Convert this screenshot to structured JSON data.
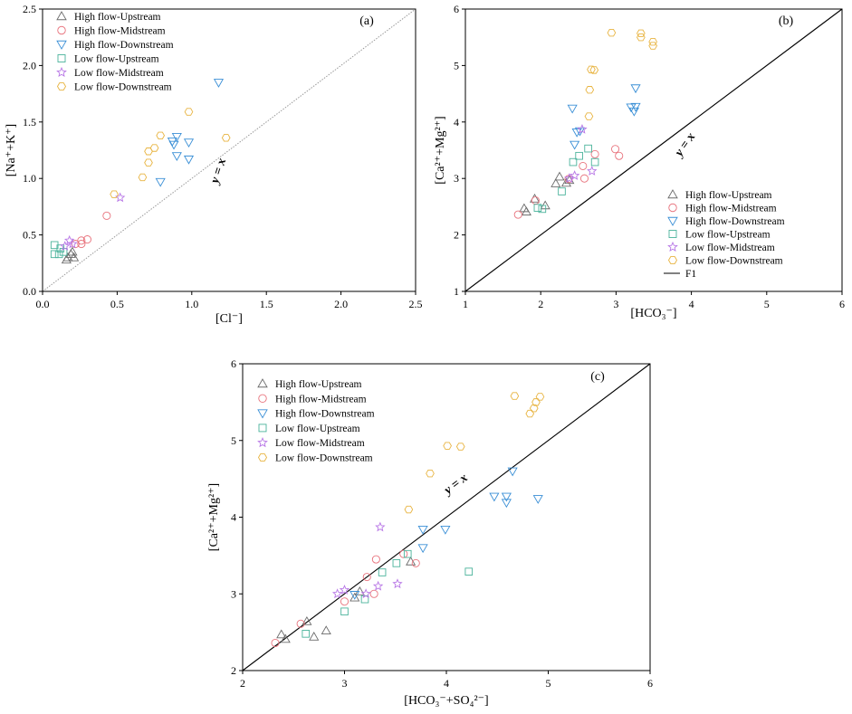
{
  "chart_data": [
    {
      "type": "scatter",
      "panel_label": "(a)",
      "xlabel": "[Cl⁻]",
      "ylabel": "[Na⁺+K⁺]",
      "xlim": [
        0.0,
        2.5
      ],
      "ylim": [
        0.0,
        2.5
      ],
      "xticks": [
        "0.0",
        "0.5",
        "1.0",
        "1.5",
        "2.0",
        "2.5"
      ],
      "yticks": [
        "0.0",
        "0.5",
        "1.0",
        "1.5",
        "2.0",
        "2.5"
      ],
      "reference_line": {
        "label": "y = x",
        "style": "dotted-gray"
      },
      "legend_position": "top-left",
      "series": [
        {
          "name": "High flow-Upstream",
          "points": [
            [
              0.17,
              0.3
            ],
            [
              0.19,
              0.33
            ],
            [
              0.21,
              0.3
            ],
            [
              0.16,
              0.28
            ],
            [
              0.2,
              0.35
            ]
          ]
        },
        {
          "name": "High flow-Midstream",
          "points": [
            [
              0.22,
              0.42
            ],
            [
              0.26,
              0.45
            ],
            [
              0.3,
              0.46
            ],
            [
              0.26,
              0.42
            ],
            [
              0.43,
              0.67
            ]
          ]
        },
        {
          "name": "High flow-Downstream",
          "points": [
            [
              0.79,
              0.97
            ],
            [
              0.87,
              1.33
            ],
            [
              0.88,
              1.3
            ],
            [
              0.9,
              1.37
            ],
            [
              0.9,
              1.2
            ],
            [
              0.98,
              1.32
            ],
            [
              0.98,
              1.17
            ],
            [
              1.18,
              1.85
            ]
          ]
        },
        {
          "name": "Low flow-Upstream",
          "points": [
            [
              0.08,
              0.41
            ],
            [
              0.08,
              0.33
            ],
            [
              0.11,
              0.33
            ],
            [
              0.12,
              0.38
            ],
            [
              0.14,
              0.35
            ]
          ]
        },
        {
          "name": "Low flow-Midstream",
          "points": [
            [
              0.15,
              0.4
            ],
            [
              0.18,
              0.45
            ],
            [
              0.2,
              0.42
            ],
            [
              0.52,
              0.83
            ]
          ]
        },
        {
          "name": "Low flow-Downstream",
          "points": [
            [
              0.48,
              0.86
            ],
            [
              0.67,
              1.01
            ],
            [
              0.71,
              1.14
            ],
            [
              0.71,
              1.24
            ],
            [
              0.75,
              1.27
            ],
            [
              0.79,
              1.38
            ],
            [
              0.98,
              1.59
            ],
            [
              1.23,
              1.36
            ]
          ]
        }
      ]
    },
    {
      "type": "scatter",
      "panel_label": "(b)",
      "xlabel": "[HCO₃⁻]",
      "ylabel": "[Ca²⁺+Mg²⁺]",
      "xlim": [
        1,
        6
      ],
      "ylim": [
        1,
        6
      ],
      "xticks": [
        "1",
        "2",
        "3",
        "4",
        "5",
        "6"
      ],
      "yticks": [
        "1",
        "2",
        "3",
        "4",
        "5",
        "6"
      ],
      "reference_line": {
        "label": "y = x",
        "legend_label": "F1",
        "style": "solid-black"
      },
      "legend_position": "bottom-right",
      "series": [
        {
          "name": "High flow-Upstream",
          "points": [
            [
              1.78,
              2.47
            ],
            [
              1.81,
              2.41
            ],
            [
              1.92,
              2.64
            ],
            [
              2.06,
              2.52
            ],
            [
              2.2,
              2.91
            ],
            [
              2.25,
              3.03
            ],
            [
              2.34,
              2.92
            ],
            [
              2.38,
              2.97
            ]
          ]
        },
        {
          "name": "High flow-Midstream",
          "points": [
            [
              1.7,
              2.36
            ],
            [
              1.93,
              2.61
            ],
            [
              2.37,
              2.99
            ],
            [
              2.58,
              3.0
            ],
            [
              2.72,
              3.43
            ],
            [
              2.99,
              3.52
            ],
            [
              3.04,
              3.4
            ],
            [
              2.56,
              3.22
            ]
          ]
        },
        {
          "name": "High flow-Downstream",
          "points": [
            [
              2.42,
              4.24
            ],
            [
              2.48,
              3.82
            ],
            [
              2.52,
              3.84
            ],
            [
              2.45,
              3.6
            ],
            [
              3.2,
              4.26
            ],
            [
              3.24,
              4.19
            ],
            [
              3.26,
              4.27
            ],
            [
              3.26,
              4.6
            ]
          ]
        },
        {
          "name": "Low flow-Upstream",
          "points": [
            [
              1.96,
              2.48
            ],
            [
              2.02,
              2.46
            ],
            [
              2.28,
              2.77
            ],
            [
              2.43,
              3.29
            ],
            [
              2.51,
              3.4
            ],
            [
              2.63,
              3.53
            ],
            [
              2.72,
              3.29
            ]
          ]
        },
        {
          "name": "Low flow-Midstream",
          "points": [
            [
              2.38,
              3.0
            ],
            [
              2.45,
              3.05
            ],
            [
              2.55,
              3.87
            ],
            [
              2.68,
              3.13
            ]
          ]
        },
        {
          "name": "Low flow-Downstream",
          "points": [
            [
              2.64,
              4.1
            ],
            [
              2.65,
              4.57
            ],
            [
              2.67,
              4.93
            ],
            [
              2.71,
              4.92
            ],
            [
              2.94,
              5.58
            ],
            [
              3.33,
              5.5
            ],
            [
              3.33,
              5.57
            ],
            [
              3.49,
              5.35
            ],
            [
              3.49,
              5.42
            ]
          ]
        }
      ]
    },
    {
      "type": "scatter",
      "panel_label": "(c)",
      "xlabel": "[HCO₃⁻+SO₄²⁻]",
      "ylabel": "[Ca²⁺+Mg²⁺]",
      "xlim": [
        2,
        6
      ],
      "ylim": [
        2,
        6
      ],
      "xticks": [
        "2",
        "3",
        "4",
        "5",
        "6"
      ],
      "yticks": [
        "2",
        "3",
        "4",
        "5",
        "6"
      ],
      "reference_line": {
        "label": "y = x",
        "style": "solid-black"
      },
      "legend_position": "top-left",
      "series": [
        {
          "name": "High flow-Upstream",
          "points": [
            [
              2.38,
              2.47
            ],
            [
              2.42,
              2.41
            ],
            [
              2.63,
              2.64
            ],
            [
              2.7,
              2.44
            ],
            [
              2.82,
              2.52
            ],
            [
              3.1,
              2.95
            ],
            [
              3.15,
              3.03
            ],
            [
              3.65,
              3.42
            ]
          ]
        },
        {
          "name": "High flow-Midstream",
          "points": [
            [
              2.32,
              2.36
            ],
            [
              2.57,
              2.61
            ],
            [
              3.0,
              2.9
            ],
            [
              3.22,
              3.22
            ],
            [
              3.29,
              3.0
            ],
            [
              3.31,
              3.45
            ],
            [
              3.58,
              3.52
            ],
            [
              3.7,
              3.4
            ]
          ]
        },
        {
          "name": "High flow-Downstream",
          "points": [
            [
              3.1,
              2.99
            ],
            [
              3.77,
              3.84
            ],
            [
              3.99,
              3.84
            ],
            [
              4.47,
              4.27
            ],
            [
              4.59,
              4.19
            ],
            [
              4.59,
              4.27
            ],
            [
              4.65,
              4.6
            ],
            [
              4.9,
              4.24
            ],
            [
              3.77,
              3.6
            ]
          ]
        },
        {
          "name": "Low flow-Upstream",
          "points": [
            [
              2.62,
              2.48
            ],
            [
              3.0,
              2.77
            ],
            [
              3.2,
              2.93
            ],
            [
              3.37,
              3.28
            ],
            [
              3.51,
              3.4
            ],
            [
              3.62,
              3.52
            ],
            [
              4.22,
              3.29
            ]
          ]
        },
        {
          "name": "Low flow-Midstream",
          "points": [
            [
              2.93,
              3.0
            ],
            [
              3.0,
              3.05
            ],
            [
              3.35,
              3.87
            ],
            [
              3.52,
              3.13
            ],
            [
              3.21,
              3.0
            ],
            [
              3.33,
              3.1
            ]
          ]
        },
        {
          "name": "Low flow-Downstream",
          "points": [
            [
              3.63,
              4.1
            ],
            [
              3.84,
              4.57
            ],
            [
              4.01,
              4.93
            ],
            [
              4.14,
              4.92
            ],
            [
              4.82,
              5.35
            ],
            [
              4.86,
              5.42
            ],
            [
              4.88,
              5.5
            ],
            [
              4.67,
              5.58
            ],
            [
              4.92,
              5.57
            ]
          ]
        }
      ]
    }
  ],
  "series_styles": [
    {
      "name": "High flow-Upstream",
      "marker": "triangle-up",
      "color": "#6b6b6b"
    },
    {
      "name": "High flow-Midstream",
      "marker": "circle",
      "color": "#e8727c"
    },
    {
      "name": "High flow-Downstream",
      "marker": "triangle-down",
      "color": "#3a8fd6"
    },
    {
      "name": "Low flow-Upstream",
      "marker": "square",
      "color": "#4ab39b"
    },
    {
      "name": "Low flow-Midstream",
      "marker": "star",
      "color": "#b877e6"
    },
    {
      "name": "Low flow-Downstream",
      "marker": "hexagon",
      "color": "#e8b441"
    }
  ]
}
